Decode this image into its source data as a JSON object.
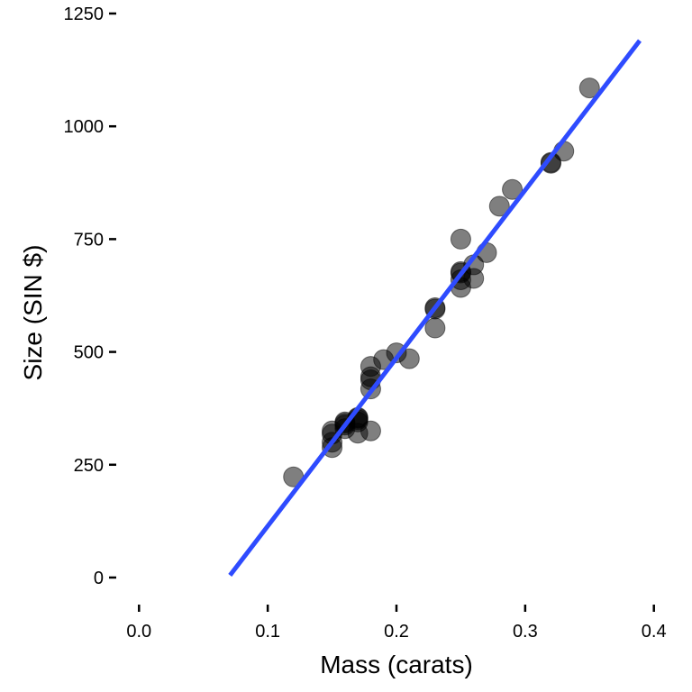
{
  "chart_data": {
    "type": "scatter",
    "xlabel": "Mass (carats)",
    "ylabel": "Size (SIN $)",
    "xlim": [
      -0.01,
      0.41
    ],
    "ylim": [
      -50,
      1260
    ],
    "x_ticks": [
      0.0,
      0.1,
      0.2,
      0.3,
      0.4
    ],
    "x_tick_labels": [
      "0.0",
      "0.1",
      "0.2",
      "0.3",
      "0.4"
    ],
    "y_ticks": [
      0,
      250,
      500,
      750,
      1000,
      1250
    ],
    "y_tick_labels": [
      "0",
      "250",
      "500",
      "750",
      "1000",
      "1250"
    ],
    "grid": false,
    "legend": "none",
    "point_color": "#000000",
    "point_opacity": 0.5,
    "fit_line_color": "#2e4bff",
    "series": [
      {
        "points": [
          {
            "x": 0.12,
            "y": 223
          },
          {
            "x": 0.15,
            "y": 288
          },
          {
            "x": 0.15,
            "y": 300
          },
          {
            "x": 0.15,
            "y": 318
          },
          {
            "x": 0.15,
            "y": 325
          },
          {
            "x": 0.16,
            "y": 330
          },
          {
            "x": 0.16,
            "y": 342
          },
          {
            "x": 0.16,
            "y": 345
          },
          {
            "x": 0.16,
            "y": 338
          },
          {
            "x": 0.17,
            "y": 320
          },
          {
            "x": 0.17,
            "y": 345
          },
          {
            "x": 0.17,
            "y": 353
          },
          {
            "x": 0.17,
            "y": 350
          },
          {
            "x": 0.17,
            "y": 355
          },
          {
            "x": 0.18,
            "y": 325
          },
          {
            "x": 0.18,
            "y": 418
          },
          {
            "x": 0.18,
            "y": 438
          },
          {
            "x": 0.18,
            "y": 445
          },
          {
            "x": 0.18,
            "y": 468
          },
          {
            "x": 0.19,
            "y": 483
          },
          {
            "x": 0.2,
            "y": 498
          },
          {
            "x": 0.21,
            "y": 485
          },
          {
            "x": 0.23,
            "y": 553
          },
          {
            "x": 0.23,
            "y": 595
          },
          {
            "x": 0.23,
            "y": 598
          },
          {
            "x": 0.25,
            "y": 643
          },
          {
            "x": 0.25,
            "y": 660
          },
          {
            "x": 0.25,
            "y": 675
          },
          {
            "x": 0.25,
            "y": 678
          },
          {
            "x": 0.25,
            "y": 750
          },
          {
            "x": 0.26,
            "y": 663
          },
          {
            "x": 0.26,
            "y": 693
          },
          {
            "x": 0.27,
            "y": 720
          },
          {
            "x": 0.28,
            "y": 823
          },
          {
            "x": 0.29,
            "y": 860
          },
          {
            "x": 0.32,
            "y": 918
          },
          {
            "x": 0.32,
            "y": 920
          },
          {
            "x": 0.33,
            "y": 945
          },
          {
            "x": 0.35,
            "y": 1085
          }
        ]
      }
    ],
    "fit_line": {
      "x": [
        0.0707,
        0.389
      ],
      "y": [
        5,
        1190
      ]
    }
  }
}
